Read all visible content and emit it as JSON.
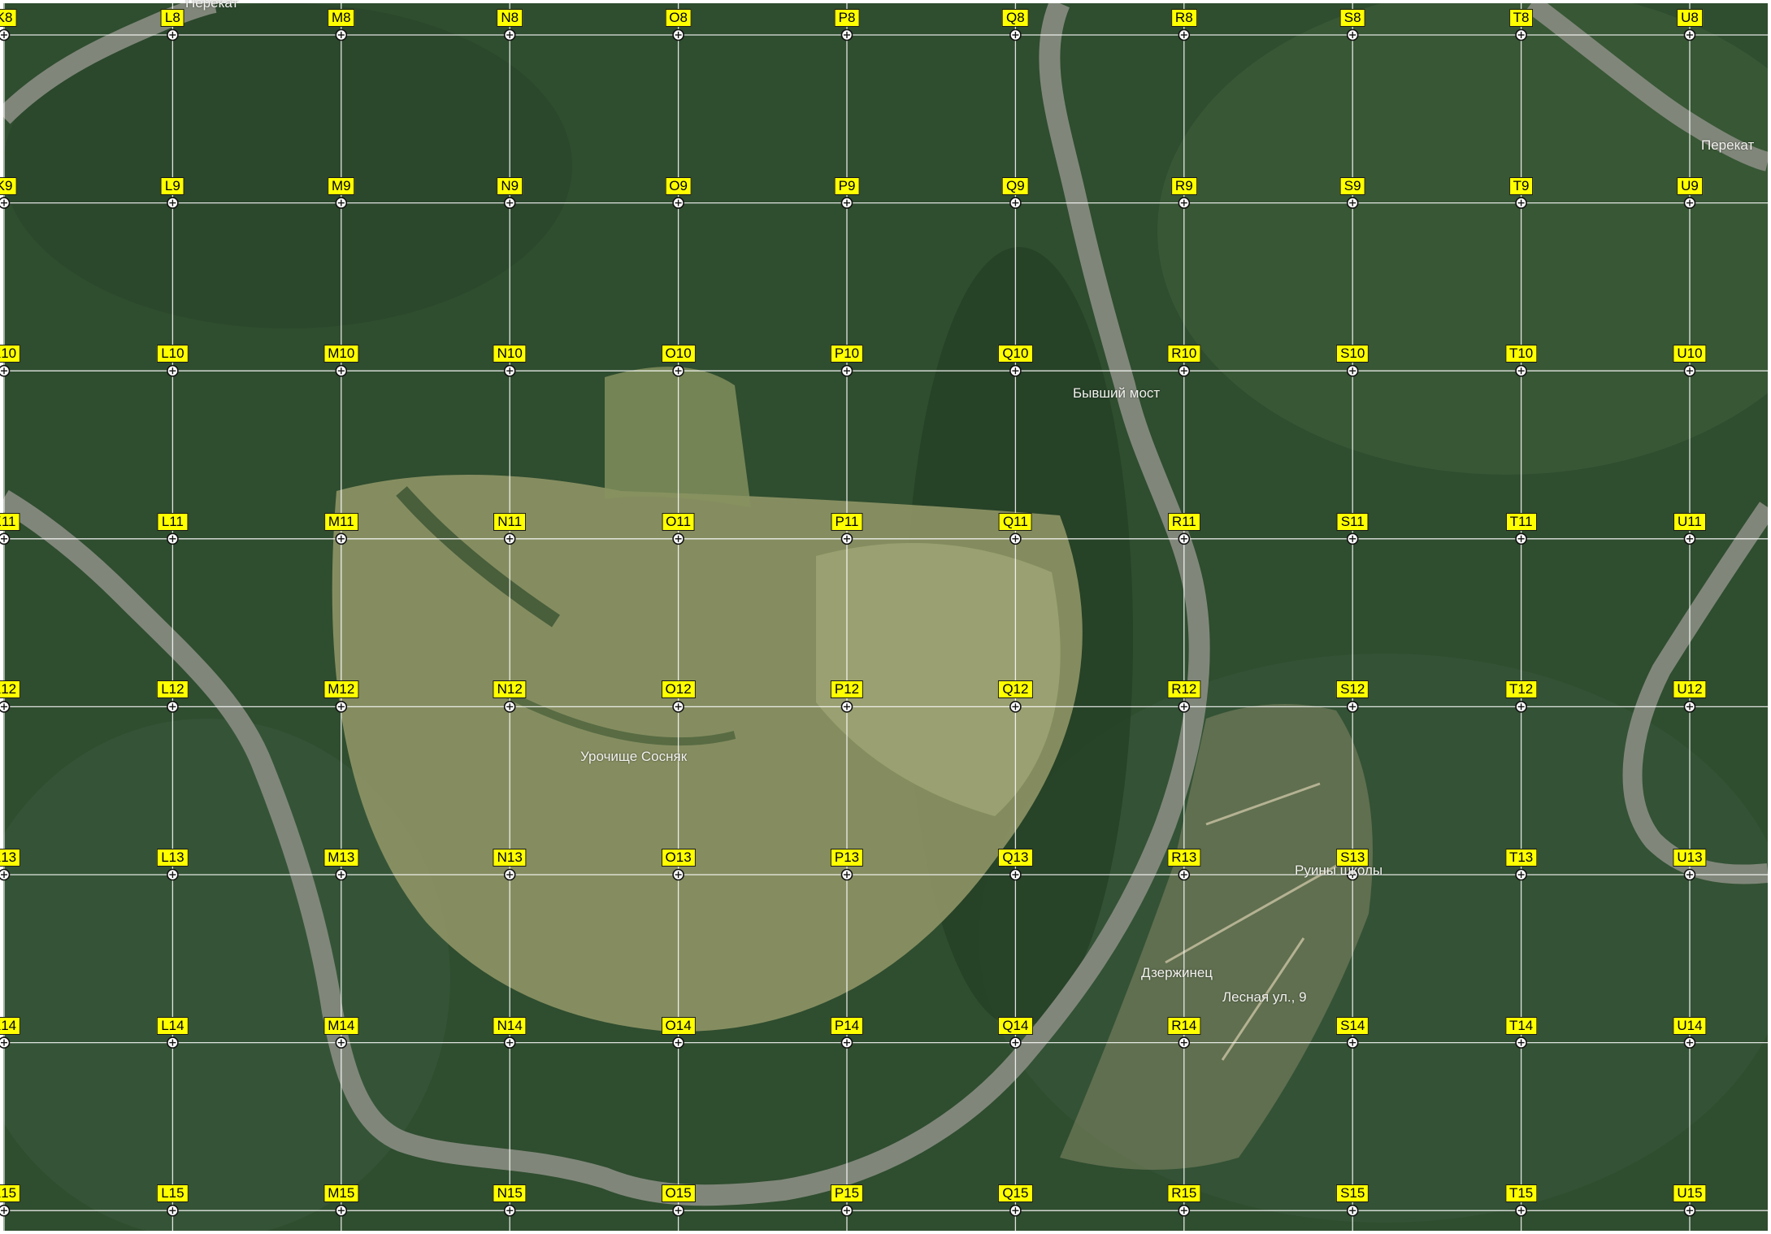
{
  "map": {
    "colors": {
      "forest_dark": "#1f3c24",
      "forest_mid": "#3d5e36",
      "clearing": "#9da472",
      "river": "#7f877a",
      "grid_line": "#ffffff",
      "label_bg": "#ffff00",
      "label_text": "#000000"
    },
    "grid": {
      "columns": [
        "K",
        "L",
        "M",
        "N",
        "O",
        "P",
        "Q",
        "R",
        "S",
        "T",
        "U"
      ],
      "rows": [
        "8",
        "9",
        "10",
        "11",
        "12",
        "13",
        "14",
        "15"
      ]
    },
    "place_labels": {
      "perekat_top": "Перекат",
      "perekat_right": "Перекат",
      "former_bridge": "Бывший мост",
      "sosnyak": "Урочище Сосняк",
      "school_ruins": "Руины школы",
      "village": "Дзержинец",
      "address": "Лесная ул., 9"
    }
  }
}
